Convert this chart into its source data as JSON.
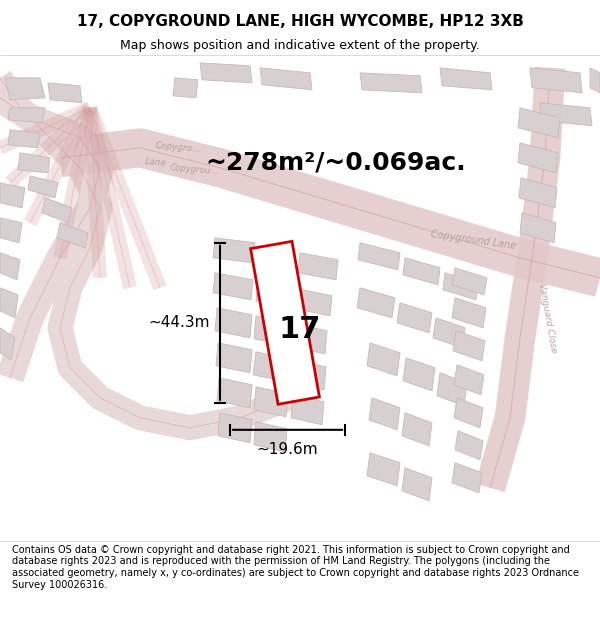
{
  "title": "17, COPYGROUND LANE, HIGH WYCOMBE, HP12 3XB",
  "subtitle": "Map shows position and indicative extent of the property.",
  "footer": "Contains OS data © Crown copyright and database right 2021. This information is subject to Crown copyright and database rights 2023 and is reproduced with the permission of HM Land Registry. The polygons (including the associated geometry, namely x, y co-ordinates) are subject to Crown copyright and database rights 2023 Ordnance Survey 100026316.",
  "area_text": "~278m²/~0.069ac.",
  "dim_width": "~19.6m",
  "dim_height": "~44.3m",
  "plot_number": "17",
  "bg_color": "#f5f0f0",
  "map_bg": "#f9f5f5",
  "road_color": "#d4a0a0",
  "building_fill": "#d8d0d0",
  "building_edge": "#c8b8b8",
  "highlight_color": "#cc0000",
  "highlight_fill": "#ffffff",
  "road_line_color": "#c08080",
  "text_color_light": "#b8a0a0",
  "dim_color": "#000000",
  "title_fontsize": 11,
  "subtitle_fontsize": 9,
  "footer_fontsize": 7,
  "area_fontsize": 18,
  "plot_label_fontsize": 22,
  "dim_label_fontsize": 11
}
